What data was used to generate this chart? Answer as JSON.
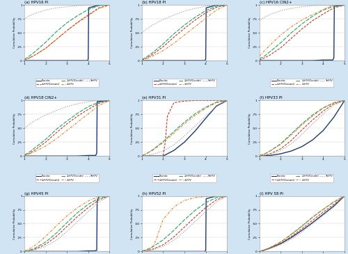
{
  "panels": [
    {
      "title": "(a) HPV16 PI",
      "idx": 0
    },
    {
      "title": "(b) HPV18 PI",
      "idx": 1
    },
    {
      "title": "(c) HPV16 CIN2+",
      "idx": 2
    },
    {
      "title": "(d) HPV18 CIN2+",
      "idx": 3
    },
    {
      "title": "(e) HPV31 PI",
      "idx": 4
    },
    {
      "title": "(f) HPV33 PI",
      "idx": 5
    },
    {
      "title": "(g) HPV45 PI",
      "idx": 6
    },
    {
      "title": "(h) HPV52 PI",
      "idx": 7
    },
    {
      "title": "(i) HPV 58 PI",
      "idx": 8
    }
  ],
  "vaccines": [
    "Placebo",
    "2vHPV(Cervarix)",
    "2vHPV(Cecolin)",
    "4vHPV",
    "9vHPV"
  ],
  "colors": [
    "#1a3a6b",
    "#c0392b",
    "#27a060",
    "#e08020",
    "#999999"
  ],
  "background": "#d0e4f4",
  "plot_bg": "#ffffff",
  "xlim": [
    1,
    5
  ],
  "ylim": [
    0,
    1
  ],
  "xticks": [
    1,
    2,
    3,
    4,
    5
  ],
  "ytick_labels": [
    "0",
    ".25",
    ".50",
    ".75",
    "1"
  ],
  "yticks": [
    0,
    0.25,
    0.5,
    0.75,
    1.0
  ],
  "curves": {
    "0": {
      "Placebo": [
        [
          1.0,
          1.5,
          2.0,
          2.5,
          3.0,
          3.5,
          3.8,
          3.9,
          3.95,
          4.0,
          4.02,
          4.5,
          5.0
        ],
        [
          0.0,
          0.0,
          0.0,
          0.0,
          0.0,
          0.0,
          0.0,
          0.0,
          0.0,
          0.02,
          0.95,
          1.0,
          1.0
        ]
      ],
      "2vHPV(Cervarix)": [
        [
          1.0,
          1.2,
          1.5,
          2.0,
          2.5,
          3.0,
          3.5,
          4.0,
          4.5,
          5.0
        ],
        [
          0.01,
          0.04,
          0.1,
          0.22,
          0.38,
          0.54,
          0.69,
          0.82,
          0.95,
          1.0
        ]
      ],
      "2vHPV(Cecolin)": [
        [
          1.0,
          1.2,
          1.5,
          2.0,
          2.5,
          3.0,
          3.5,
          4.0,
          4.5,
          5.0
        ],
        [
          0.02,
          0.07,
          0.16,
          0.33,
          0.52,
          0.68,
          0.81,
          0.92,
          0.99,
          1.0
        ]
      ],
      "4vHPV": [
        [
          1.0,
          1.2,
          1.5,
          2.0,
          2.5,
          3.0,
          3.5,
          4.0,
          4.5,
          5.0
        ],
        [
          0.01,
          0.04,
          0.1,
          0.22,
          0.38,
          0.54,
          0.68,
          0.81,
          0.94,
          1.0
        ]
      ],
      "9vHPV": [
        [
          1.0,
          1.2,
          1.5,
          2.0,
          2.5,
          3.0,
          3.5,
          4.0,
          4.5,
          5.0
        ],
        [
          0.75,
          0.8,
          0.85,
          0.91,
          0.95,
          0.97,
          0.99,
          1.0,
          1.0,
          1.0
        ]
      ]
    },
    "1": {
      "Placebo": [
        [
          1.0,
          1.5,
          2.0,
          2.5,
          3.0,
          3.5,
          3.8,
          3.9,
          3.95,
          4.0,
          4.02,
          4.5,
          5.0
        ],
        [
          0.0,
          0.0,
          0.0,
          0.0,
          0.0,
          0.0,
          0.0,
          0.0,
          0.0,
          0.02,
          0.95,
          1.0,
          1.0
        ]
      ],
      "2vHPV(Cervarix)": [
        [
          1.0,
          1.2,
          1.5,
          2.0,
          2.5,
          3.0,
          3.5,
          4.0,
          4.5,
          5.0
        ],
        [
          0.01,
          0.04,
          0.11,
          0.25,
          0.42,
          0.58,
          0.73,
          0.86,
          0.96,
          1.0
        ]
      ],
      "2vHPV(Cecolin)": [
        [
          1.0,
          1.2,
          1.5,
          2.0,
          2.5,
          3.0,
          3.5,
          4.0,
          4.5,
          5.0
        ],
        [
          0.02,
          0.06,
          0.14,
          0.3,
          0.48,
          0.64,
          0.78,
          0.9,
          0.98,
          1.0
        ]
      ],
      "4vHPV": [
        [
          1.0,
          1.2,
          1.5,
          2.0,
          2.5,
          3.0,
          3.5,
          4.0,
          4.5,
          5.0
        ],
        [
          0.01,
          0.03,
          0.08,
          0.18,
          0.31,
          0.46,
          0.61,
          0.76,
          0.91,
          1.0
        ]
      ],
      "9vHPV": [
        [
          1.0,
          1.2,
          1.5,
          2.0,
          2.5,
          3.0,
          3.5,
          4.0,
          4.5,
          5.0
        ],
        [
          0.5,
          0.56,
          0.64,
          0.74,
          0.82,
          0.89,
          0.94,
          0.98,
          1.0,
          1.0
        ]
      ]
    },
    "2": {
      "Placebo": [
        [
          1.0,
          1.5,
          2.0,
          2.5,
          3.0,
          3.5,
          4.0,
          4.3,
          4.45,
          4.5,
          4.52,
          5.0
        ],
        [
          0.0,
          0.0,
          0.0,
          0.0,
          0.0,
          0.0,
          0.01,
          0.01,
          0.01,
          0.05,
          0.98,
          1.0
        ]
      ],
      "2vHPV(Cervarix)": [
        [
          1.0,
          1.2,
          1.5,
          2.0,
          2.5,
          3.0,
          3.5,
          4.0,
          4.5,
          5.0
        ],
        [
          0.01,
          0.04,
          0.1,
          0.23,
          0.4,
          0.57,
          0.72,
          0.84,
          0.95,
          1.0
        ]
      ],
      "2vHPV(Cecolin)": [
        [
          1.0,
          1.2,
          1.5,
          2.0,
          2.5,
          3.0,
          3.5,
          4.0,
          4.5,
          5.0
        ],
        [
          0.03,
          0.07,
          0.16,
          0.32,
          0.5,
          0.66,
          0.8,
          0.91,
          0.98,
          1.0
        ]
      ],
      "4vHPV": [
        [
          1.0,
          1.2,
          1.5,
          2.0,
          2.5,
          3.0,
          3.5,
          4.0,
          4.3,
          4.45,
          4.5,
          5.0
        ],
        [
          0.08,
          0.16,
          0.28,
          0.46,
          0.61,
          0.73,
          0.83,
          0.92,
          0.97,
          1.0,
          1.0,
          1.0
        ]
      ],
      "9vHPV": [
        [
          1.0,
          1.2,
          1.5,
          2.0,
          2.5,
          3.0,
          3.5,
          4.0,
          4.5,
          5.0
        ],
        [
          0.72,
          0.77,
          0.83,
          0.9,
          0.94,
          0.97,
          0.99,
          1.0,
          1.0,
          1.0
        ]
      ]
    },
    "3": {
      "Placebo": [
        [
          1.0,
          1.5,
          2.0,
          2.5,
          3.0,
          3.5,
          4.0,
          4.2,
          4.35,
          4.4,
          4.42,
          5.0
        ],
        [
          0.0,
          0.0,
          0.0,
          0.0,
          0.0,
          0.0,
          0.01,
          0.01,
          0.01,
          0.05,
          0.98,
          1.0
        ]
      ],
      "2vHPV(Cervarix)": [
        [
          1.0,
          1.2,
          1.5,
          2.0,
          2.5,
          3.0,
          3.5,
          4.0,
          4.5,
          5.0
        ],
        [
          0.01,
          0.04,
          0.11,
          0.25,
          0.42,
          0.58,
          0.72,
          0.84,
          0.95,
          1.0
        ]
      ],
      "2vHPV(Cecolin)": [
        [
          1.0,
          1.2,
          1.5,
          2.0,
          2.5,
          3.0,
          3.5,
          4.0,
          4.5,
          5.0
        ],
        [
          0.02,
          0.06,
          0.15,
          0.3,
          0.48,
          0.63,
          0.77,
          0.89,
          0.97,
          1.0
        ]
      ],
      "4vHPV": [
        [
          1.0,
          1.2,
          1.5,
          2.0,
          2.5,
          3.0,
          3.5,
          4.0,
          4.5,
          5.0
        ],
        [
          0.01,
          0.03,
          0.08,
          0.18,
          0.31,
          0.46,
          0.61,
          0.76,
          0.91,
          1.0
        ]
      ],
      "9vHPV": [
        [
          1.0,
          1.2,
          1.5,
          2.0,
          2.5,
          3.0,
          3.5,
          4.0,
          4.5,
          5.0
        ],
        [
          0.5,
          0.56,
          0.64,
          0.74,
          0.82,
          0.89,
          0.94,
          0.98,
          1.0,
          1.0
        ]
      ]
    },
    "4": {
      "Placebo": [
        [
          1.0,
          1.5,
          2.0,
          2.1,
          2.5,
          3.0,
          3.5,
          4.0,
          4.5,
          5.0
        ],
        [
          0.0,
          0.0,
          0.0,
          0.02,
          0.1,
          0.25,
          0.45,
          0.68,
          0.9,
          1.0
        ]
      ],
      "2vHPV(Cervarix)": [
        [
          1.0,
          1.3,
          1.5,
          1.7,
          1.9,
          2.0,
          2.1,
          2.2,
          2.5,
          3.0,
          3.5,
          4.0,
          4.5,
          5.0
        ],
        [
          0.0,
          0.0,
          0.0,
          0.0,
          0.0,
          0.02,
          0.25,
          0.72,
          0.96,
          0.99,
          1.0,
          1.0,
          1.0,
          1.0
        ]
      ],
      "2vHPV(Cecolin)": [
        [
          1.0,
          1.2,
          1.5,
          2.0,
          2.5,
          3.0,
          3.5,
          4.0,
          4.5,
          5.0
        ],
        [
          0.01,
          0.04,
          0.11,
          0.26,
          0.44,
          0.61,
          0.76,
          0.88,
          0.97,
          1.0
        ]
      ],
      "4vHPV": [
        [
          1.0,
          1.2,
          1.5,
          2.0,
          2.5,
          3.0,
          3.5,
          4.0,
          4.5,
          5.0
        ],
        [
          0.01,
          0.04,
          0.1,
          0.24,
          0.41,
          0.58,
          0.73,
          0.86,
          0.96,
          1.0
        ]
      ],
      "9vHPV": [
        [
          1.0,
          1.2,
          1.5,
          2.0,
          2.5,
          3.0,
          3.5,
          4.0,
          4.5,
          5.0
        ],
        [
          0.0,
          0.01,
          0.03,
          0.09,
          0.2,
          0.36,
          0.54,
          0.72,
          0.89,
          1.0
        ]
      ]
    },
    "5": {
      "Placebo": [
        [
          1.0,
          1.5,
          2.0,
          2.5,
          3.0,
          3.5,
          4.0,
          4.5,
          5.0
        ],
        [
          0.0,
          0.01,
          0.04,
          0.09,
          0.17,
          0.29,
          0.46,
          0.7,
          1.0
        ]
      ],
      "2vHPV(Cervarix)": [
        [
          1.0,
          1.2,
          1.5,
          2.0,
          2.5,
          3.0,
          3.5,
          4.0,
          4.5,
          5.0
        ],
        [
          0.0,
          0.01,
          0.04,
          0.13,
          0.28,
          0.47,
          0.65,
          0.81,
          0.94,
          1.0
        ]
      ],
      "2vHPV(Cecolin)": [
        [
          1.0,
          1.2,
          1.5,
          2.0,
          2.5,
          3.0,
          3.5,
          4.0,
          4.5,
          5.0
        ],
        [
          0.01,
          0.03,
          0.09,
          0.22,
          0.4,
          0.58,
          0.74,
          0.87,
          0.96,
          1.0
        ]
      ],
      "4vHPV": [
        [
          1.0,
          1.2,
          1.5,
          2.0,
          2.5,
          3.0,
          3.5,
          4.0,
          4.5,
          5.0
        ],
        [
          0.01,
          0.03,
          0.09,
          0.21,
          0.38,
          0.56,
          0.72,
          0.86,
          0.96,
          1.0
        ]
      ],
      "9vHPV": [
        [
          1.0,
          1.2,
          1.5,
          2.0,
          2.5,
          3.0,
          3.5,
          4.0,
          4.5,
          5.0
        ],
        [
          0.0,
          0.01,
          0.03,
          0.1,
          0.22,
          0.39,
          0.58,
          0.76,
          0.92,
          1.0
        ]
      ]
    },
    "6": {
      "Placebo": [
        [
          1.0,
          1.5,
          2.0,
          2.5,
          3.0,
          3.5,
          4.0,
          4.3,
          4.4,
          4.42,
          4.5,
          5.0
        ],
        [
          0.0,
          0.0,
          0.0,
          0.0,
          0.0,
          0.0,
          0.01,
          0.01,
          0.02,
          0.9,
          1.0,
          1.0
        ]
      ],
      "2vHPV(Cervarix)": [
        [
          1.0,
          1.2,
          1.5,
          2.0,
          2.5,
          3.0,
          3.5,
          4.0,
          4.5,
          5.0
        ],
        [
          0.0,
          0.01,
          0.04,
          0.13,
          0.27,
          0.45,
          0.63,
          0.79,
          0.93,
          1.0
        ]
      ],
      "2vHPV(Cecolin)": [
        [
          1.0,
          1.2,
          1.5,
          2.0,
          2.5,
          3.0,
          3.5,
          4.0,
          4.5,
          5.0
        ],
        [
          0.0,
          0.02,
          0.06,
          0.17,
          0.33,
          0.52,
          0.7,
          0.85,
          0.96,
          1.0
        ]
      ],
      "4vHPV": [
        [
          1.0,
          1.2,
          1.5,
          2.0,
          2.5,
          3.0,
          3.5,
          4.0,
          4.5,
          5.0
        ],
        [
          0.01,
          0.04,
          0.11,
          0.27,
          0.46,
          0.64,
          0.79,
          0.91,
          0.99,
          1.0
        ]
      ],
      "9vHPV": [
        [
          1.0,
          1.2,
          1.5,
          2.0,
          2.5,
          3.0,
          3.5,
          4.0,
          4.5,
          5.0
        ],
        [
          0.0,
          0.01,
          0.03,
          0.09,
          0.2,
          0.36,
          0.54,
          0.72,
          0.89,
          1.0
        ]
      ]
    },
    "7": {
      "Placebo": [
        [
          1.0,
          1.5,
          2.0,
          2.5,
          3.0,
          3.5,
          3.8,
          3.9,
          3.95,
          4.0,
          4.02,
          4.5,
          5.0
        ],
        [
          0.0,
          0.0,
          0.0,
          0.0,
          0.0,
          0.0,
          0.0,
          0.0,
          0.0,
          0.02,
          0.95,
          1.0,
          1.0
        ]
      ],
      "2vHPV(Cervarix)": [
        [
          1.0,
          1.2,
          1.5,
          2.0,
          2.5,
          3.0,
          3.5,
          4.0,
          4.5,
          5.0
        ],
        [
          0.0,
          0.01,
          0.04,
          0.12,
          0.26,
          0.44,
          0.62,
          0.79,
          0.93,
          1.0
        ]
      ],
      "2vHPV(Cecolin)": [
        [
          1.0,
          1.2,
          1.5,
          2.0,
          2.5,
          3.0,
          3.5,
          4.0,
          4.5,
          5.0
        ],
        [
          0.01,
          0.03,
          0.08,
          0.21,
          0.38,
          0.57,
          0.74,
          0.88,
          0.97,
          1.0
        ]
      ],
      "4vHPV": [
        [
          1.0,
          1.2,
          1.4,
          1.5,
          1.6,
          1.7,
          1.8,
          2.0,
          2.5,
          3.0,
          3.5,
          4.0,
          4.5,
          5.0
        ],
        [
          0.0,
          0.02,
          0.05,
          0.09,
          0.15,
          0.24,
          0.36,
          0.58,
          0.8,
          0.92,
          0.97,
          0.99,
          1.0,
          1.0
        ]
      ],
      "9vHPV": [
        [
          1.0,
          1.2,
          1.5,
          2.0,
          2.5,
          3.0,
          3.5,
          4.0,
          4.5,
          5.0
        ],
        [
          0.0,
          0.01,
          0.03,
          0.09,
          0.2,
          0.36,
          0.54,
          0.72,
          0.89,
          1.0
        ]
      ]
    },
    "8": {
      "Placebo": [
        [
          1.0,
          1.2,
          1.5,
          2.0,
          2.5,
          3.0,
          3.5,
          4.0,
          4.5,
          5.0
        ],
        [
          0.0,
          0.02,
          0.06,
          0.14,
          0.25,
          0.38,
          0.52,
          0.67,
          0.82,
          1.0
        ]
      ],
      "2vHPV(Cervarix)": [
        [
          1.0,
          1.2,
          1.5,
          2.0,
          2.5,
          3.0,
          3.5,
          4.0,
          4.5,
          5.0
        ],
        [
          0.0,
          0.02,
          0.06,
          0.15,
          0.27,
          0.41,
          0.56,
          0.71,
          0.85,
          1.0
        ]
      ],
      "2vHPV(Cecolin)": [
        [
          1.0,
          1.2,
          1.5,
          2.0,
          2.5,
          3.0,
          3.5,
          4.0,
          4.5,
          5.0
        ],
        [
          0.0,
          0.02,
          0.07,
          0.17,
          0.31,
          0.46,
          0.62,
          0.76,
          0.89,
          1.0
        ]
      ],
      "4vHPV": [
        [
          1.0,
          1.2,
          1.5,
          2.0,
          2.5,
          3.0,
          3.5,
          4.0,
          4.5,
          5.0
        ],
        [
          0.0,
          0.02,
          0.07,
          0.17,
          0.3,
          0.45,
          0.61,
          0.76,
          0.9,
          1.0
        ]
      ],
      "9vHPV": [
        [
          1.0,
          1.2,
          1.5,
          2.0,
          2.5,
          3.0,
          3.5,
          4.0,
          4.5,
          5.0
        ],
        [
          0.0,
          0.01,
          0.05,
          0.12,
          0.22,
          0.35,
          0.5,
          0.65,
          0.8,
          1.0
        ]
      ]
    }
  }
}
